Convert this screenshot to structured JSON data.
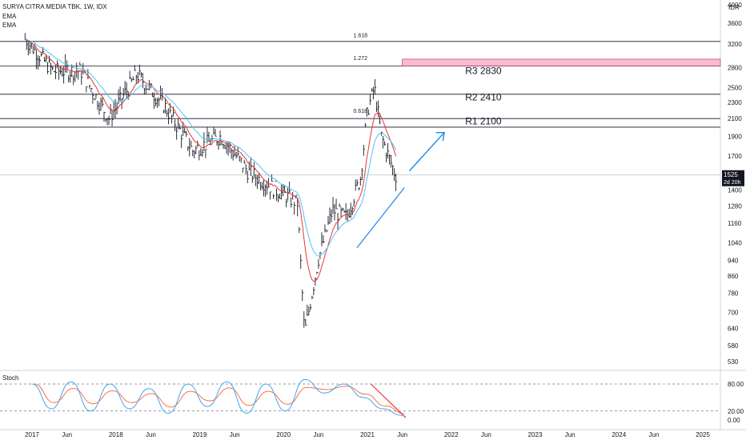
{
  "header": {
    "symbol_line": "SURYA CITRA MEDIA TBK, 1W, IDX",
    "ema1": "EMA",
    "ema2": "EMA",
    "currency": "IDR"
  },
  "stoch_label": "Stoch",
  "price_badge": {
    "value": "1525",
    "sub": "2d 20h",
    "color": "#131722"
  },
  "colors": {
    "ema_fast": "#e53935",
    "ema_slow": "#4fc3f7",
    "bars": "#131722",
    "resistance_box": "#f8bbd0",
    "trend_arrow": "#1e88e5",
    "divergence": "#e53935",
    "stoch_k": "#42a5f5",
    "stoch_d": "#ff7043"
  },
  "levels": [
    {
      "label": "R3 2830"
    },
    {
      "label": "R2 2410"
    },
    {
      "label": "R1 2100"
    }
  ],
  "fib": [
    "1.618",
    "1.272",
    "0.618"
  ],
  "chart_data": [
    {
      "type": "line",
      "title": "SURYA CITRA MEDIA TBK, 1W, IDX",
      "y_scale": "log",
      "ylim": [
        530,
        4000
      ],
      "x_ticks": [
        "2017",
        "Jun",
        "2018",
        "Jun",
        "2019",
        "Jun",
        "2020",
        "Jun",
        "2021",
        "Jun",
        "2022",
        "Jun",
        "2023",
        "Jun",
        "2024",
        "Jun",
        "2025"
      ],
      "y_ticks": [
        4000,
        3600,
        3200,
        2800,
        2500,
        2300,
        2100,
        1900,
        1700,
        1525,
        1400,
        1280,
        1160,
        1040,
        940,
        860,
        780,
        700,
        640,
        580,
        530
      ],
      "x_dates": [
        "2016-12",
        "2017-04",
        "2017-08",
        "2017-12",
        "2018-04",
        "2018-08",
        "2018-12",
        "2019-04",
        "2019-08",
        "2019-12",
        "2020-03",
        "2020-04",
        "2020-06",
        "2020-08",
        "2020-10",
        "2020-12",
        "2021-01",
        "2021-02",
        "2021-03",
        "2021-04",
        "2021-05"
      ],
      "series": [
        {
          "values": [
            3300,
            2750,
            2750,
            2100,
            2700,
            2250,
            1750,
            1900,
            1550,
            1400,
            1300,
            620,
            950,
            1250,
            1200,
            1500,
            2200,
            2500,
            1900,
            1700,
            1525
          ]
        }
      ],
      "horizontal_levels": [
        3250,
        2830,
        2410,
        2100,
        2000,
        1525
      ]
    },
    {
      "type": "line",
      "title": "Stoch",
      "ylim": [
        0,
        100
      ],
      "y_ticks": [
        80.0,
        20.0,
        0.0
      ],
      "series": [
        {
          "values": [
            80,
            25,
            85,
            20,
            80,
            25,
            70,
            15,
            80,
            30,
            85,
            15,
            80,
            20,
            90,
            60,
            80,
            50,
            25,
            10
          ]
        }
      ]
    }
  ]
}
